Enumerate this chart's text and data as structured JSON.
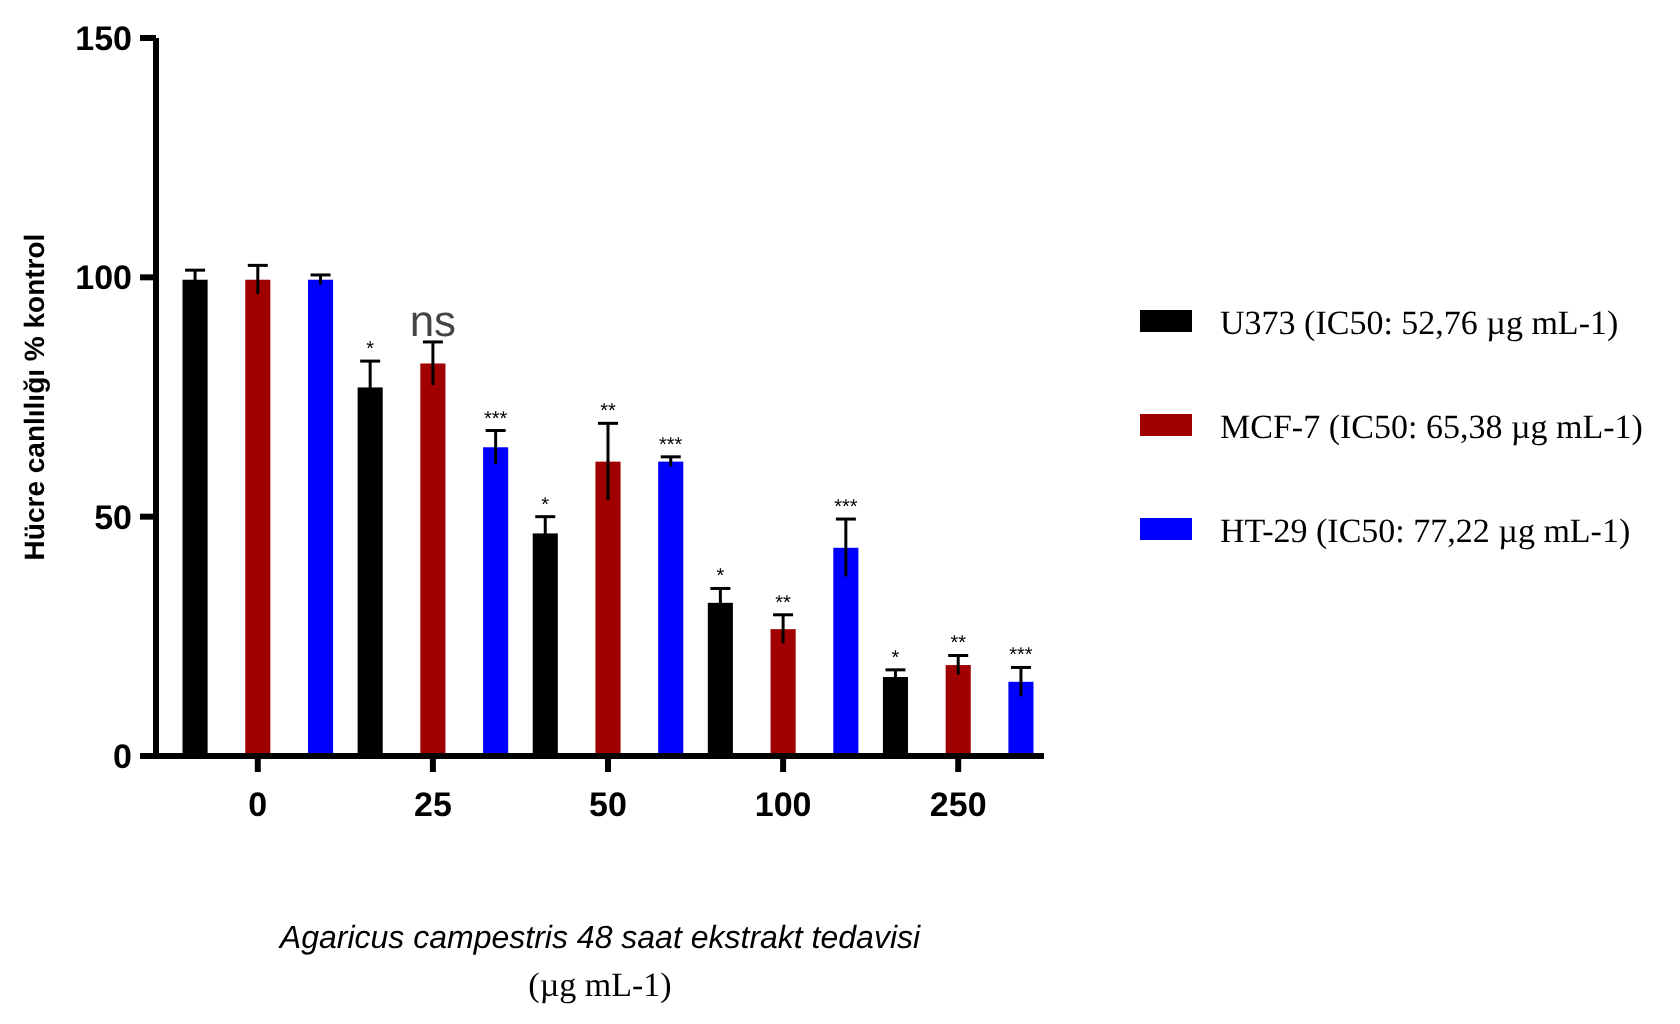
{
  "chart_data": {
    "type": "bar",
    "xlabel": "Agaricus campestris 48 saat ekstrakt tedavisi\n(µg mL-1)",
    "ylabel": "Hücre canlılığı % kontrol",
    "categories": [
      "0",
      "25",
      "50",
      "100",
      "250"
    ],
    "series": [
      {
        "name": "U373 (IC50: 52,76 µg mL-1)",
        "color": "#000000",
        "values": [
          99.5,
          77,
          46.5,
          32,
          16.5
        ],
        "errors": [
          2,
          5.5,
          3.5,
          3,
          1.5
        ]
      },
      {
        "name": "MCF-7 (IC50: 65,38 µg mL-1)",
        "color": "#a00000",
        "values": [
          99.5,
          82,
          61.5,
          26.5,
          19
        ],
        "errors": [
          3,
          4.5,
          8,
          3,
          2
        ]
      },
      {
        "name": "HT-29 (IC50: 77,22 µg mL-1)",
        "color": "#0000ff",
        "values": [
          99.5,
          64.5,
          61.5,
          43.5,
          15.5
        ],
        "errors": [
          1,
          3.5,
          1,
          6,
          3
        ]
      }
    ],
    "ylim": [
      0,
      150
    ],
    "yticks": [
      0,
      50,
      100,
      150
    ],
    "grid": false,
    "legend": "right",
    "annotations": [
      "*",
      "ns",
      "***",
      "*",
      "**",
      "***",
      "*",
      "**",
      "***",
      "*",
      "**",
      "***"
    ]
  }
}
